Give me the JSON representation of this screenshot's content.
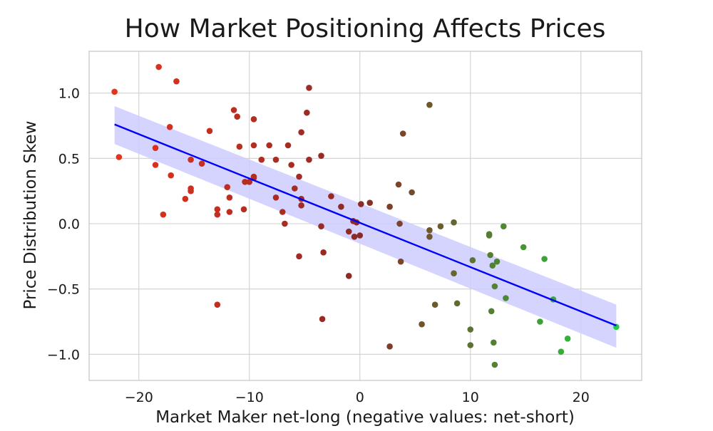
{
  "chart_data": {
    "type": "scatter",
    "title": "How Market Positioning Affects Prices",
    "xlabel": "Market Maker net-long (negative values: net-short)",
    "ylabel": "Price Distribution Skew",
    "xlim": [
      -24.5,
      25.5
    ],
    "ylim": [
      -1.2,
      1.32
    ],
    "xticks": [
      -20,
      -10,
      0,
      10,
      20
    ],
    "xtick_labels": [
      "−20",
      "−10",
      "0",
      "10",
      "20"
    ],
    "yticks": [
      -1.0,
      -0.5,
      0.0,
      0.5,
      1.0
    ],
    "ytick_labels": [
      "−1.0",
      "−0.5",
      "0.0",
      "0.5",
      "1.0"
    ],
    "grid": true,
    "colors": {
      "negative_x": "#e8321e",
      "near_zero": "#8b2a24",
      "positive_x": "#1fd03f",
      "regression_line": "#0000ff",
      "confidence_band": "#ccccff",
      "grid": "#d0d0d0",
      "axes": "#c8c8c8",
      "text": "#1a1a1a"
    },
    "regression": {
      "x": [
        -22.2,
        23.2
      ],
      "y": [
        0.76,
        -0.78
      ],
      "ci_lower": [
        0.61,
        -0.95
      ],
      "ci_upper": [
        0.9,
        -0.62
      ]
    },
    "points": [
      {
        "x": -22.2,
        "y": 1.01
      },
      {
        "x": -21.8,
        "y": 0.51
      },
      {
        "x": -18.2,
        "y": 1.2
      },
      {
        "x": -18.5,
        "y": 0.58
      },
      {
        "x": -18.5,
        "y": 0.45
      },
      {
        "x": -17.8,
        "y": 0.07
      },
      {
        "x": -17.2,
        "y": 0.74
      },
      {
        "x": -17.1,
        "y": 0.37
      },
      {
        "x": -16.6,
        "y": 1.09
      },
      {
        "x": -15.8,
        "y": 0.19
      },
      {
        "x": -15.3,
        "y": 0.49
      },
      {
        "x": -15.3,
        "y": 0.27
      },
      {
        "x": -15.3,
        "y": 0.25
      },
      {
        "x": -14.3,
        "y": 0.46
      },
      {
        "x": -13.6,
        "y": 0.71
      },
      {
        "x": -12.9,
        "y": 0.11
      },
      {
        "x": -12.9,
        "y": 0.07
      },
      {
        "x": -12.9,
        "y": -0.62
      },
      {
        "x": -12.0,
        "y": 0.28
      },
      {
        "x": -11.8,
        "y": 0.2
      },
      {
        "x": -11.8,
        "y": 0.09
      },
      {
        "x": -11.4,
        "y": 0.87
      },
      {
        "x": -11.1,
        "y": 0.82
      },
      {
        "x": -10.9,
        "y": 0.59
      },
      {
        "x": -10.5,
        "y": 0.11
      },
      {
        "x": -10.4,
        "y": 0.32
      },
      {
        "x": -10.0,
        "y": 0.32
      },
      {
        "x": -9.6,
        "y": 0.8
      },
      {
        "x": -9.6,
        "y": 0.6
      },
      {
        "x": -9.6,
        "y": 0.36
      },
      {
        "x": -9.6,
        "y": 0.35
      },
      {
        "x": -8.9,
        "y": 0.49
      },
      {
        "x": -8.2,
        "y": 0.6
      },
      {
        "x": -7.6,
        "y": 0.49
      },
      {
        "x": -7.6,
        "y": 0.2
      },
      {
        "x": -7.0,
        "y": 0.09
      },
      {
        "x": -6.8,
        "y": 0.0
      },
      {
        "x": -6.5,
        "y": 0.6
      },
      {
        "x": -6.2,
        "y": 0.45
      },
      {
        "x": -5.9,
        "y": 0.27
      },
      {
        "x": -5.5,
        "y": 0.36
      },
      {
        "x": -5.5,
        "y": -0.25
      },
      {
        "x": -5.3,
        "y": 0.7
      },
      {
        "x": -5.3,
        "y": 0.19
      },
      {
        "x": -5.3,
        "y": 0.14
      },
      {
        "x": -4.8,
        "y": 0.85
      },
      {
        "x": -4.6,
        "y": 1.04
      },
      {
        "x": -4.6,
        "y": 0.49
      },
      {
        "x": -3.5,
        "y": 0.52
      },
      {
        "x": -3.5,
        "y": -0.02
      },
      {
        "x": -3.3,
        "y": -0.22
      },
      {
        "x": -3.4,
        "y": -0.73
      },
      {
        "x": -2.6,
        "y": 0.21
      },
      {
        "x": -1.7,
        "y": 0.13
      },
      {
        "x": -1.0,
        "y": -0.06
      },
      {
        "x": -1.0,
        "y": -0.4
      },
      {
        "x": -0.6,
        "y": 0.02
      },
      {
        "x": -0.5,
        "y": -0.1
      },
      {
        "x": -0.3,
        "y": 0.01
      },
      {
        "x": 0.0,
        "y": -0.09
      },
      {
        "x": 0.1,
        "y": 0.15
      },
      {
        "x": 0.9,
        "y": 0.16
      },
      {
        "x": 2.7,
        "y": 0.13
      },
      {
        "x": 2.7,
        "y": -0.94
      },
      {
        "x": 3.5,
        "y": 0.3
      },
      {
        "x": 3.6,
        "y": 0.0
      },
      {
        "x": 3.7,
        "y": -0.29
      },
      {
        "x": 3.9,
        "y": 0.69
      },
      {
        "x": 4.7,
        "y": 0.24
      },
      {
        "x": 5.6,
        "y": -0.77
      },
      {
        "x": 6.3,
        "y": -0.05
      },
      {
        "x": 6.3,
        "y": -0.1
      },
      {
        "x": 6.3,
        "y": 0.91
      },
      {
        "x": 6.8,
        "y": -0.62
      },
      {
        "x": 7.3,
        "y": -0.02
      },
      {
        "x": 8.5,
        "y": 0.01
      },
      {
        "x": 8.5,
        "y": -0.38
      },
      {
        "x": 8.8,
        "y": -0.61
      },
      {
        "x": 10.0,
        "y": -0.81
      },
      {
        "x": 10.0,
        "y": -0.93
      },
      {
        "x": 10.2,
        "y": -0.28
      },
      {
        "x": 11.7,
        "y": -0.09
      },
      {
        "x": 11.7,
        "y": -0.08
      },
      {
        "x": 11.8,
        "y": -0.24
      },
      {
        "x": 11.9,
        "y": -0.67
      },
      {
        "x": 12.0,
        "y": -0.32
      },
      {
        "x": 12.1,
        "y": -0.91
      },
      {
        "x": 12.2,
        "y": -0.48
      },
      {
        "x": 12.2,
        "y": -1.08
      },
      {
        "x": 12.4,
        "y": -0.29
      },
      {
        "x": 13.0,
        "y": -0.02
      },
      {
        "x": 13.2,
        "y": -0.57
      },
      {
        "x": 14.8,
        "y": -0.18
      },
      {
        "x": 16.3,
        "y": -0.75
      },
      {
        "x": 16.7,
        "y": -0.27
      },
      {
        "x": 17.5,
        "y": -0.58
      },
      {
        "x": 18.2,
        "y": -0.98
      },
      {
        "x": 18.8,
        "y": -0.88
      },
      {
        "x": 23.2,
        "y": -0.79
      }
    ]
  }
}
